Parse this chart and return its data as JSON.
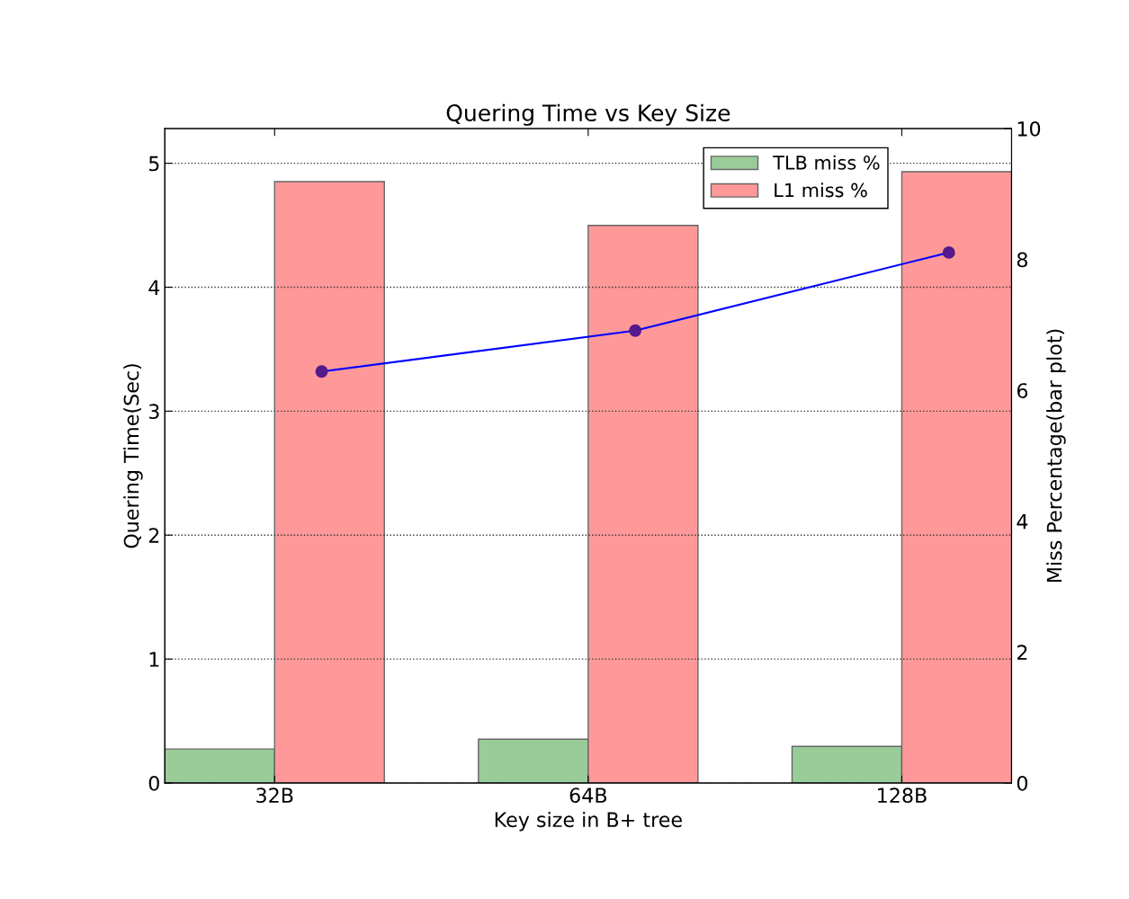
{
  "chart_data": {
    "type": "bar",
    "title": "Quering Time vs Key Size",
    "xlabel": "Key size in B+ tree",
    "ylabel": "Quering Time(Sec)",
    "y2label": "Miss Percentage(bar plot)",
    "categories": [
      "32B",
      "64B",
      "128B"
    ],
    "series": [
      {
        "name": "TLB miss %",
        "color": "#99cc99",
        "values": [
          0.52,
          0.67,
          0.56
        ],
        "axis": "y2"
      },
      {
        "name": "L1 miss %",
        "color": "#ff9999",
        "values": [
          9.19,
          8.52,
          9.34
        ],
        "axis": "y2"
      },
      {
        "type": "line",
        "color": "#0000ff",
        "values": [
          3.32,
          3.65,
          4.28
        ],
        "marker": "circle"
      }
    ],
    "ylim": [
      0,
      5.28
    ],
    "yticks": [
      0,
      1,
      2,
      3,
      4,
      5
    ],
    "y2lim": [
      0,
      10
    ],
    "y2ticks": [
      0,
      2,
      4,
      6,
      8,
      10
    ],
    "grid": "y",
    "legend": "top right"
  }
}
